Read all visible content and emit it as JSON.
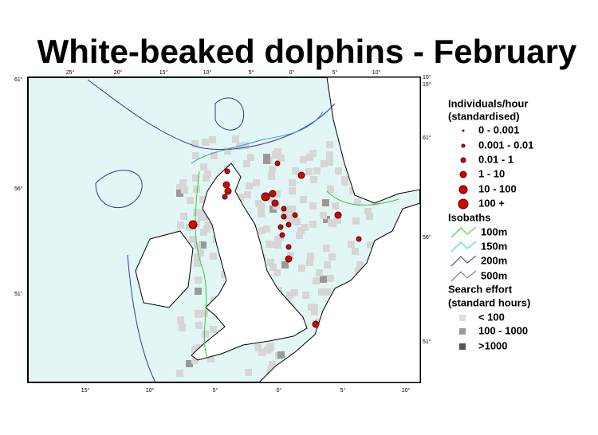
{
  "title": "White-beaked dolphins - February",
  "top_labels": [
    "25°",
    "20°",
    "15°",
    "10°",
    "5°",
    "0°",
    "5°",
    "10°"
  ],
  "bottom_labels": [
    "15°",
    "10°",
    "5°",
    "0°",
    "5°",
    "10°"
  ],
  "left_labels": [
    "61°",
    "56°",
    "51°"
  ],
  "right_labels": [
    "10°",
    "15°",
    "61°",
    "56°",
    "51°"
  ],
  "legend": {
    "individuals_title": "Individuals/hour",
    "individuals_subtitle": "(standardised)",
    "individuals_items": [
      "0 - 0.001",
      "0.001 - 0.01",
      "0.01 - 1",
      "1 - 10",
      "10 - 100",
      "100 +"
    ],
    "isobaths_title": "Isobaths",
    "isobaths_items": [
      "100m",
      "150m",
      "200m",
      "500m"
    ],
    "effort_title": "Search effort",
    "effort_subtitle": "(standard hours)",
    "effort_items": [
      "< 100",
      "100 - 1000",
      ">1000"
    ]
  }
}
